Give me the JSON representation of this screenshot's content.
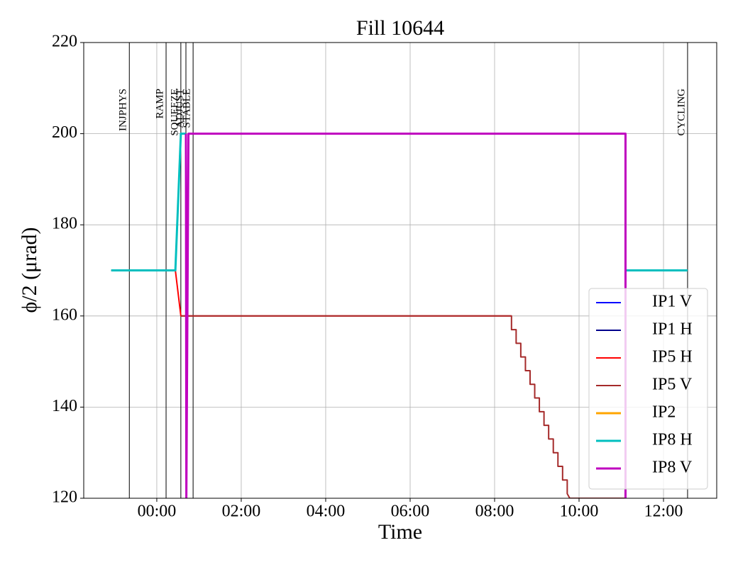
{
  "chart_data": {
    "type": "line",
    "title": "Fill 10644",
    "x_label": "Time",
    "y_label": "ϕ/2 (μrad)",
    "xlim": [
      -1.73,
      13.26
    ],
    "ylim": [
      120,
      220
    ],
    "xticks": [
      {
        "value": 0,
        "label": "00:00"
      },
      {
        "value": 2,
        "label": "02:00"
      },
      {
        "value": 4,
        "label": "04:00"
      },
      {
        "value": 6,
        "label": "06:00"
      },
      {
        "value": 8,
        "label": "08:00"
      },
      {
        "value": 10,
        "label": "10:00"
      },
      {
        "value": 12,
        "label": "12:00"
      }
    ],
    "yticks": [
      120,
      140,
      160,
      180,
      200,
      220
    ],
    "grid": true,
    "legend": "lower right",
    "events": [
      {
        "label": "INJPHYS",
        "x": -0.65
      },
      {
        "label": "RAMP",
        "x": 0.22
      },
      {
        "label": "SQUEEZE",
        "x": 0.57
      },
      {
        "label": "ADJUST",
        "x": 0.69
      },
      {
        "label": "STABLE",
        "x": 0.86
      },
      {
        "label": "CYCLING",
        "x": 12.57
      }
    ],
    "series": [
      {
        "name": "IP1 V",
        "color": "#0000ff",
        "x": [],
        "values": []
      },
      {
        "name": "IP1 H",
        "color": "#00008b",
        "x": [],
        "values": []
      },
      {
        "name": "IP5 H",
        "color": "#ff0000",
        "x": [
          -1.08,
          0.44,
          0.57,
          8.4
        ],
        "values": [
          170,
          170,
          160,
          160
        ]
      },
      {
        "name": "IP5 V",
        "color": "#a52a2a",
        "x": [
          0.57,
          8.4,
          8.4,
          8.51,
          8.51,
          8.62,
          8.62,
          8.73,
          8.73,
          8.84,
          8.84,
          8.95,
          8.95,
          9.06,
          9.06,
          9.17,
          9.17,
          9.28,
          9.28,
          9.39,
          9.39,
          9.5,
          9.5,
          9.61,
          9.61,
          9.72,
          9.72,
          9.78,
          11.1
        ],
        "values": [
          160,
          160,
          157,
          157,
          154,
          154,
          151,
          151,
          148,
          148,
          145,
          145,
          142,
          142,
          139,
          139,
          136,
          136,
          133,
          133,
          130,
          130,
          127,
          127,
          124,
          124,
          121,
          120,
          120
        ]
      },
      {
        "name": "IP2",
        "color": "#ffa500",
        "x": [],
        "values": []
      },
      {
        "name": "IP8 H",
        "color": "#00bfbf",
        "x": [
          -1.08,
          0.44,
          0.57,
          0.69,
          0.7,
          11.1,
          12.57
        ],
        "values": [
          170,
          170,
          200,
          200,
          null,
          170,
          170
        ]
      },
      {
        "name": "IP8 V",
        "color": "#bf00bf",
        "x": [
          0.69,
          0.7,
          0.75,
          11.1,
          11.1
        ],
        "values": [
          200,
          120,
          200,
          200,
          120
        ]
      }
    ]
  }
}
